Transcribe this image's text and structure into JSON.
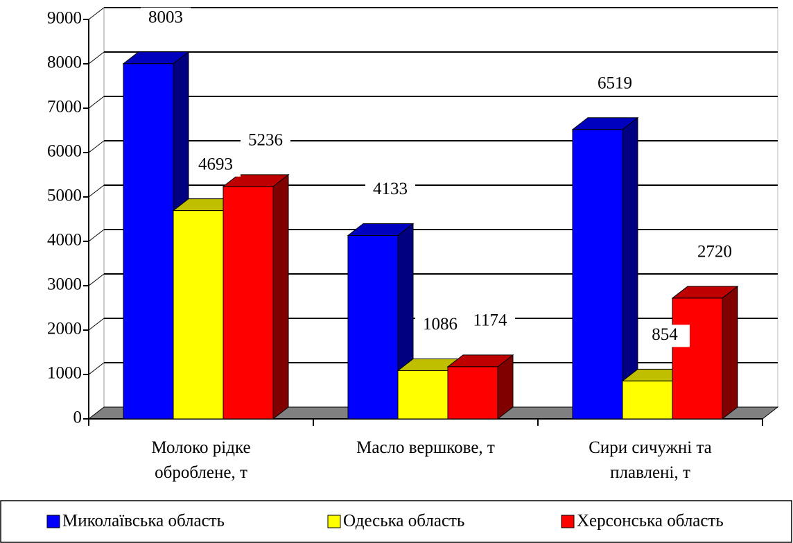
{
  "chart_data": {
    "type": "bar3d",
    "categories": [
      "Молоко рідке оброблене, т",
      "Масло вершкове, т",
      "Сири сичужні та плавлені, т"
    ],
    "series": [
      {
        "name": "Миколаївська область",
        "color": "#0000ff",
        "values": [
          8003,
          4133,
          6519
        ]
      },
      {
        "name": "Одеська область",
        "color": "#ffff00",
        "values": [
          4693,
          1086,
          854
        ]
      },
      {
        "name": "Херсонська область",
        "color": "#ff0000",
        "values": [
          5236,
          1174,
          2720
        ]
      }
    ],
    "ylim": [
      0,
      9000
    ],
    "yticks": [
      0,
      1000,
      2000,
      3000,
      4000,
      5000,
      6000,
      7000,
      8000,
      9000
    ],
    "grid": true,
    "legend": "bottom"
  }
}
